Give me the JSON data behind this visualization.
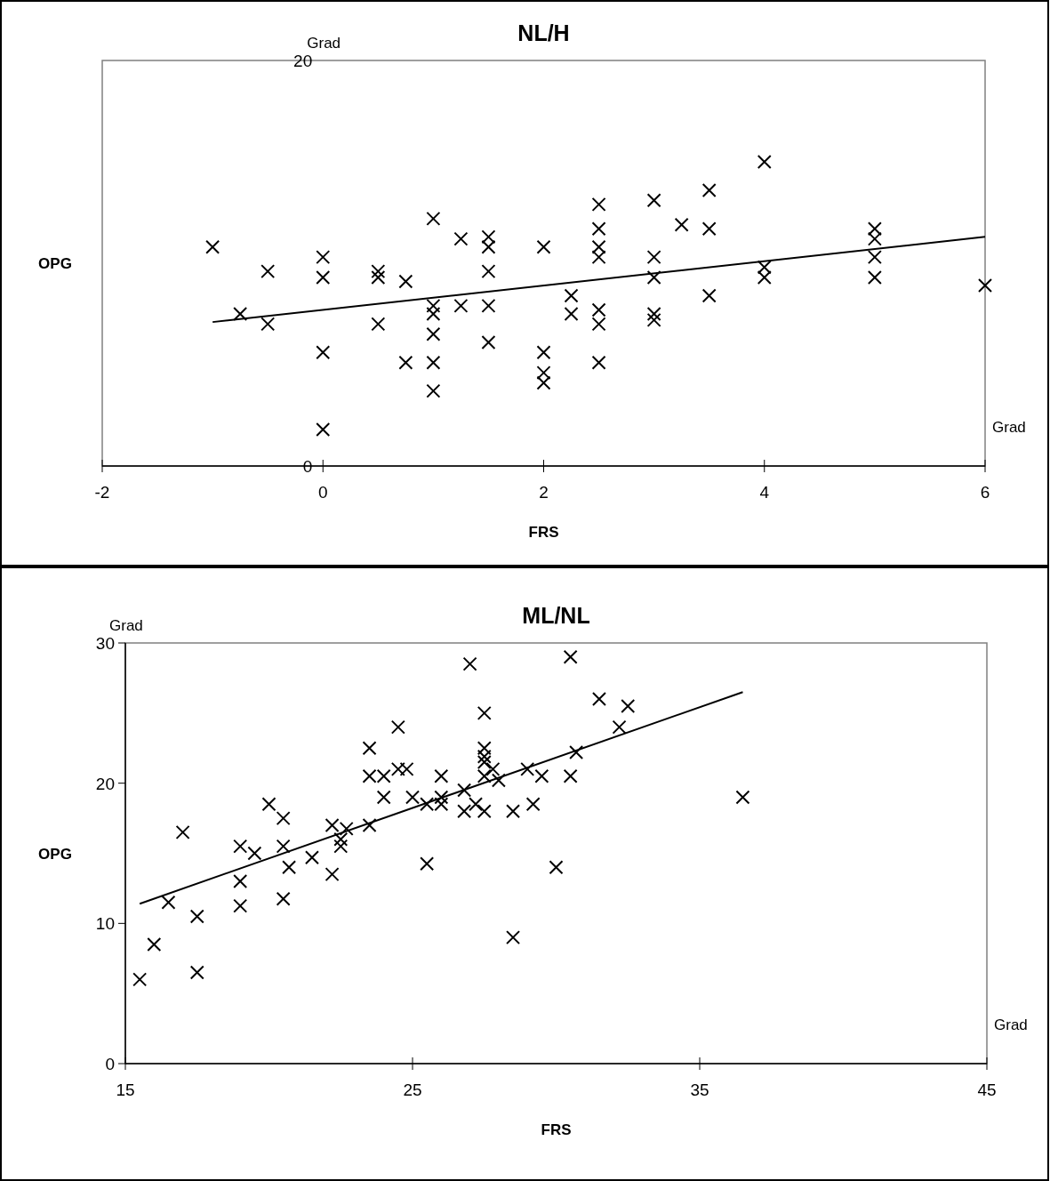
{
  "chart_data": [
    {
      "type": "scatter",
      "title": "NL/H",
      "xlabel": "FRS",
      "ylabel": "OPG",
      "annotations": [
        "Grad",
        "Grad"
      ],
      "xlim": [
        -2,
        6
      ],
      "xticks": [
        -2,
        0,
        2,
        4,
        6
      ],
      "ylim": [
        0,
        20
      ],
      "yticks": [
        0,
        20
      ],
      "grid": false,
      "series": [
        {
          "type": "scatter",
          "marker": "cross",
          "color": "#000000",
          "x": [
            -1,
            -0.75,
            -0.5,
            -0.5,
            0,
            0,
            0,
            0,
            0.5,
            0.5,
            0.5,
            0.75,
            0.75,
            1,
            1,
            1,
            1,
            1,
            1,
            1.25,
            1.25,
            1.5,
            1.5,
            1.5,
            1.5,
            1.5,
            2,
            2,
            2,
            2,
            2.25,
            2.25,
            2.5,
            2.5,
            2.5,
            2.5,
            2.5,
            2.5,
            2.5,
            3,
            3,
            3,
            3,
            3,
            3.25,
            3.5,
            3.5,
            3.5,
            4,
            4,
            4,
            5,
            5,
            5,
            5,
            6
          ],
          "values": [
            10.8,
            7.5,
            9.6,
            7.0,
            10.3,
            9.3,
            5.6,
            1.8,
            9.6,
            9.3,
            7.0,
            9.1,
            5.1,
            12.2,
            7.9,
            7.5,
            6.5,
            5.1,
            3.7,
            11.2,
            7.9,
            11.3,
            10.8,
            9.6,
            7.9,
            6.1,
            10.8,
            5.6,
            4.6,
            4.1,
            8.4,
            7.5,
            12.9,
            11.7,
            10.8,
            10.3,
            7.7,
            7.0,
            5.1,
            13.1,
            10.3,
            9.3,
            7.5,
            7.2,
            11.9,
            13.6,
            11.7,
            8.4,
            15.0,
            9.8,
            9.3,
            11.7,
            11.2,
            10.3,
            9.3,
            8.9
          ]
        },
        {
          "type": "line",
          "marker": "none",
          "color": "#000000",
          "x": [
            -1,
            6
          ],
          "values": [
            7.1,
            11.3
          ]
        }
      ]
    },
    {
      "type": "scatter",
      "title": "ML/NL",
      "xlabel": "FRS",
      "ylabel": "OPG",
      "annotations": [
        "Grad",
        "Grad"
      ],
      "xlim": [
        15,
        45
      ],
      "xticks": [
        15,
        25,
        35,
        45
      ],
      "ylim": [
        0,
        30
      ],
      "yticks": [
        0,
        10,
        20,
        30
      ],
      "grid": false,
      "series": [
        {
          "type": "scatter",
          "marker": "cross",
          "color": "#000000",
          "x": [
            15.5,
            16,
            16.5,
            17,
            17.5,
            17.5,
            19,
            19,
            19,
            19.5,
            20,
            20.5,
            20.5,
            20.5,
            20.7,
            21.5,
            22.2,
            22.2,
            22.5,
            22.5,
            22.7,
            23.5,
            23.5,
            23.5,
            24,
            24,
            24.5,
            24.5,
            24.8,
            25,
            25.5,
            25.5,
            26,
            26,
            26,
            26.8,
            26.8,
            27,
            27.2,
            27.5,
            27.5,
            27.5,
            27.5,
            27.5,
            27.5,
            27.8,
            28,
            28.5,
            28.5,
            29,
            29.2,
            29.5,
            30,
            30.5,
            30.5,
            30.7,
            31.5,
            32.2,
            32.5,
            36.5
          ],
          "values": [
            6.0,
            8.5,
            11.5,
            16.5,
            10.5,
            6.5,
            15.5,
            13.0,
            11.25,
            15.0,
            18.5,
            17.5,
            15.5,
            11.75,
            14.0,
            14.7,
            17.0,
            13.5,
            16.0,
            15.5,
            16.75,
            22.5,
            20.5,
            17.0,
            20.5,
            19.0,
            24.0,
            21.0,
            21.0,
            19.0,
            18.5,
            14.25,
            20.5,
            19.0,
            18.5,
            19.5,
            18.0,
            28.5,
            18.5,
            25.0,
            22.5,
            21.9,
            21.5,
            20.5,
            18.0,
            21.0,
            20.2,
            18.0,
            9.0,
            21.0,
            18.5,
            20.5,
            14.0,
            29.0,
            20.5,
            22.2,
            26.0,
            24.0,
            25.5,
            19.0
          ]
        },
        {
          "type": "line",
          "marker": "none",
          "color": "#000000",
          "x": [
            15.5,
            36.5
          ],
          "values": [
            11.4,
            26.5
          ]
        }
      ]
    }
  ]
}
